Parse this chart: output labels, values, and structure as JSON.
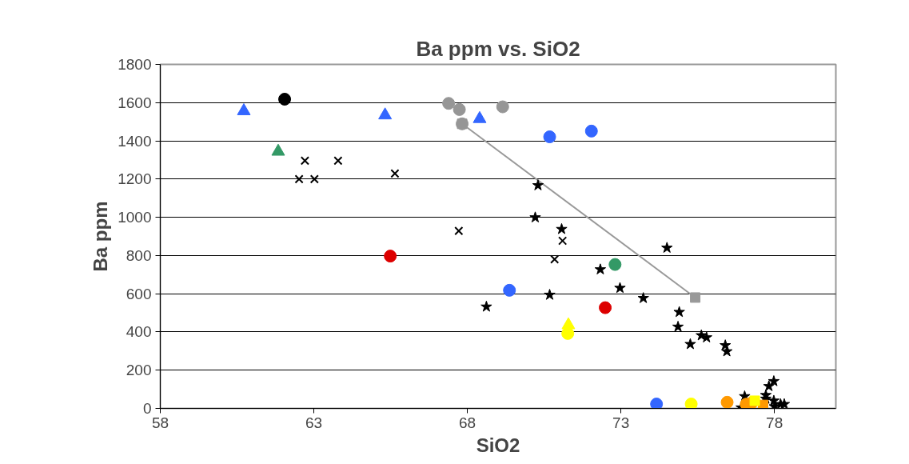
{
  "chart_data": {
    "type": "scatter",
    "title": "Ba ppm vs. SiO2",
    "xlabel": "SiO2",
    "ylabel": "Ba ppm",
    "xlim": [
      58,
      80
    ],
    "xticks": [
      58,
      63,
      68,
      73,
      78
    ],
    "ylim": [
      0,
      1800
    ],
    "yticks": [
      0,
      200,
      400,
      600,
      800,
      1000,
      1200,
      1400,
      1600,
      1800
    ],
    "grid": "y",
    "series": [
      {
        "type": "line",
        "marker": "square",
        "color": "#999999",
        "x": [
          67.83,
          75.42
        ],
        "values": [
          1489,
          580
        ]
      },
      {
        "marker": "cross",
        "color": "#000000",
        "x": [
          62.71,
          63.79,
          62.52,
          63.02,
          65.64,
          67.72,
          71.1,
          70.84
        ],
        "values": [
          1296,
          1296,
          1200,
          1200,
          1229,
          929,
          877,
          780
        ]
      },
      {
        "marker": "star",
        "color": "#000000",
        "x": [
          70.3,
          70.21,
          71.07,
          74.5,
          68.62,
          70.68,
          72.33,
          72.97,
          73.73,
          74.9,
          74.86,
          75.26,
          75.62,
          75.79,
          76.4,
          76.45,
          77.03,
          76.92,
          77.72,
          77.82,
          77.98,
          77.98,
          78.0,
          78.2,
          78.32,
          77.72
        ],
        "values": [
          1167,
          999,
          938,
          840,
          532,
          594,
          727,
          630,
          577,
          504,
          427,
          336,
          382,
          371,
          330,
          298,
          63,
          4,
          69,
          116,
          142,
          40,
          10,
          22,
          22,
          50
        ]
      },
      {
        "marker": "triangle",
        "color": "#3366ff",
        "x": [
          60.72,
          65.32,
          68.4
        ],
        "values": [
          1556,
          1534,
          1515
        ]
      },
      {
        "marker": "triangle",
        "color": "#ffff00",
        "x": [
          71.29
        ],
        "values": [
          436
        ]
      },
      {
        "marker": "triangle",
        "color": "#339966",
        "x": [
          61.84
        ],
        "values": [
          1344
        ]
      },
      {
        "marker": "circle",
        "color": "#000000",
        "x": [
          62.05
        ],
        "values": [
          1618
        ]
      },
      {
        "marker": "circle",
        "color": "#969696",
        "x": [
          67.39,
          67.74,
          67.83,
          69.15
        ],
        "values": [
          1596,
          1564,
          1489,
          1578
        ]
      },
      {
        "marker": "circle",
        "color": "#3366ff",
        "x": [
          70.68,
          72.04
        ],
        "values": [
          1421,
          1451
        ]
      },
      {
        "marker": "circle",
        "color": "#dd0000",
        "x": [
          65.49,
          72.49
        ],
        "values": [
          797,
          527
        ]
      },
      {
        "marker": "circle",
        "color": "#339966",
        "x": [
          72.81
        ],
        "values": [
          753
        ]
      },
      {
        "marker": "circle",
        "color": "#3366ff",
        "x": [
          69.37,
          74.16
        ],
        "values": [
          618,
          23
        ]
      },
      {
        "marker": "circle",
        "color": "#ffff00",
        "x": [
          71.27,
          75.29
        ],
        "values": [
          392,
          23
        ]
      },
      {
        "marker": "circle",
        "color": "#ff9900",
        "x": [
          76.46,
          77.08,
          77.27
        ],
        "values": [
          32,
          22,
          30
        ]
      },
      {
        "marker": "square",
        "color": "#ff9900",
        "x": [
          77.63
        ],
        "values": [
          18
        ]
      },
      {
        "marker": "square",
        "color": "#ffff00",
        "x": [
          77.36
        ],
        "values": [
          40
        ]
      }
    ]
  }
}
